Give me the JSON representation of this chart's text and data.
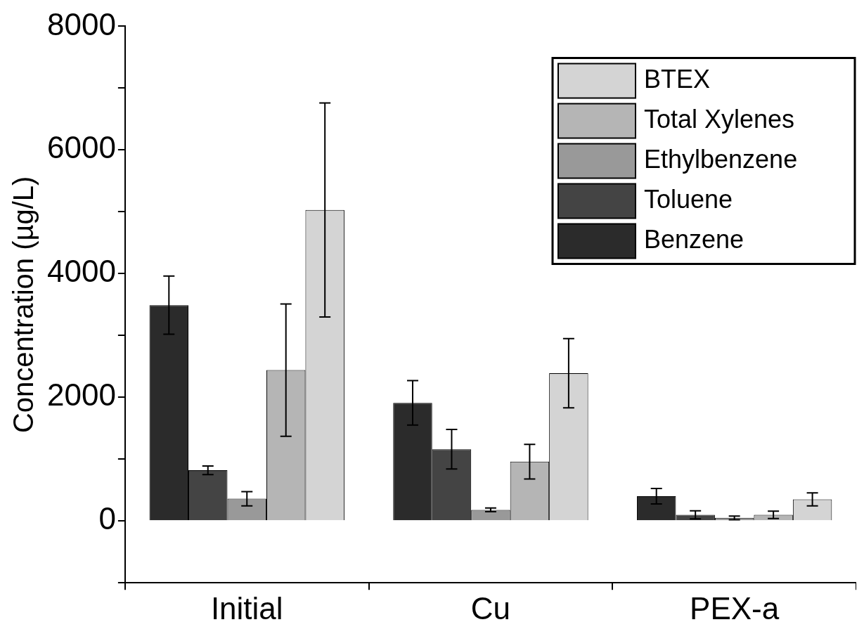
{
  "chart_data": {
    "type": "bar",
    "ylabel": "Concentration (µg/L)",
    "categories": [
      "Initial",
      "Cu",
      "PEX-a"
    ],
    "series": [
      {
        "name": "Benzene",
        "color": "#2b2b2b",
        "values": [
          3490,
          1910,
          400
        ],
        "errors": [
          470,
          360,
          125
        ]
      },
      {
        "name": "Toluene",
        "color": "#444444",
        "values": [
          820,
          1160,
          100
        ],
        "errors": [
          70,
          320,
          65
        ]
      },
      {
        "name": "Ethylbenzene",
        "color": "#999999",
        "values": [
          360,
          180,
          50
        ],
        "errors": [
          115,
          30,
          30
        ]
      },
      {
        "name": "Total Xylenes",
        "color": "#b5b5b5",
        "values": [
          2440,
          960,
          100
        ],
        "errors": [
          1070,
          280,
          60
        ]
      },
      {
        "name": "BTEX",
        "color": "#d4d4d4",
        "values": [
          5030,
          2390,
          350
        ],
        "errors": [
          1730,
          560,
          105
        ]
      }
    ],
    "ylim": [
      -1000,
      8000
    ],
    "yticks": [
      {
        "value": -1000,
        "label": null
      },
      0,
      {
        "value": 1000,
        "label": null
      },
      2000,
      {
        "value": 3000,
        "label": null
      },
      4000,
      {
        "value": 5000,
        "label": null
      },
      6000,
      {
        "value": 7000,
        "label": null
      },
      8000
    ],
    "legend": "top right"
  }
}
